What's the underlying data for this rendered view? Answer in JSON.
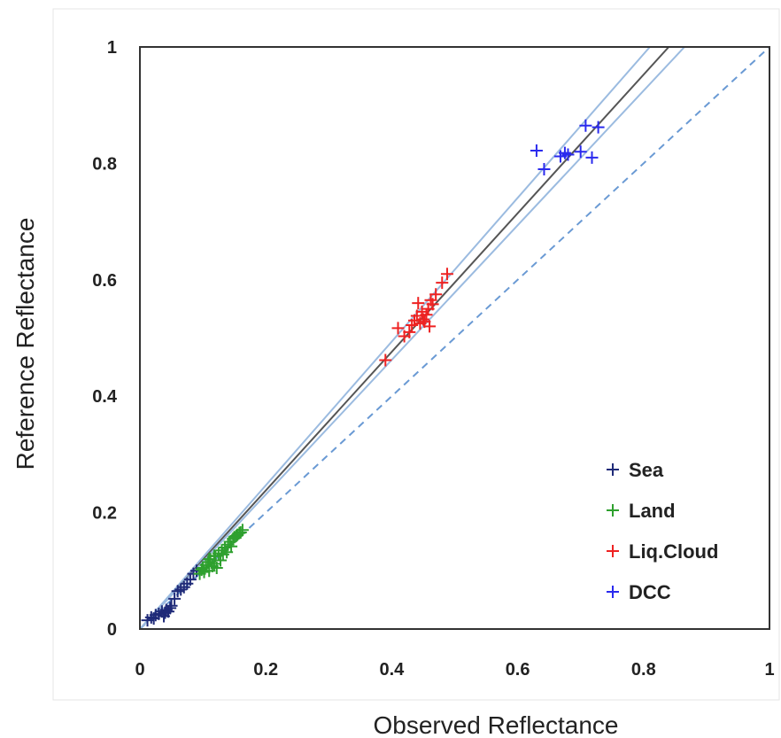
{
  "chart_data": {
    "type": "scatter",
    "title": "",
    "xlabel": "Observed Reflectance",
    "ylabel": "Reference Reflectance",
    "xlim": [
      0,
      1
    ],
    "ylim": [
      0,
      1
    ],
    "x_ticks": [
      "0",
      "0.2",
      "0.4",
      "0.6",
      "0.8",
      "1"
    ],
    "y_ticks": [
      "0",
      "0.2",
      "0.4",
      "0.6",
      "0.8",
      "1"
    ],
    "grid": false,
    "legend_position": "bottom-right",
    "series": [
      {
        "name": "Sea",
        "color": "#1f2a78",
        "marker": "plus",
        "points": [
          [
            0.012,
            0.015
          ],
          [
            0.018,
            0.02
          ],
          [
            0.022,
            0.018
          ],
          [
            0.025,
            0.024
          ],
          [
            0.03,
            0.026
          ],
          [
            0.035,
            0.03
          ],
          [
            0.038,
            0.022
          ],
          [
            0.04,
            0.028
          ],
          [
            0.042,
            0.033
          ],
          [
            0.045,
            0.03
          ],
          [
            0.048,
            0.036
          ],
          [
            0.05,
            0.04
          ],
          [
            0.055,
            0.052
          ],
          [
            0.06,
            0.065
          ],
          [
            0.065,
            0.068
          ],
          [
            0.07,
            0.072
          ],
          [
            0.075,
            0.078
          ],
          [
            0.08,
            0.085
          ],
          [
            0.085,
            0.095
          ],
          [
            0.09,
            0.1
          ]
        ]
      },
      {
        "name": "Land",
        "color": "#2ea02e",
        "marker": "plus",
        "points": [
          [
            0.095,
            0.095
          ],
          [
            0.098,
            0.102
          ],
          [
            0.1,
            0.105
          ],
          [
            0.102,
            0.098
          ],
          [
            0.105,
            0.11
          ],
          [
            0.108,
            0.115
          ],
          [
            0.11,
            0.1
          ],
          [
            0.112,
            0.12
          ],
          [
            0.115,
            0.108
          ],
          [
            0.118,
            0.112
          ],
          [
            0.12,
            0.125
          ],
          [
            0.122,
            0.105
          ],
          [
            0.125,
            0.13
          ],
          [
            0.128,
            0.118
          ],
          [
            0.13,
            0.135
          ],
          [
            0.132,
            0.128
          ],
          [
            0.135,
            0.14
          ],
          [
            0.138,
            0.132
          ],
          [
            0.14,
            0.145
          ],
          [
            0.143,
            0.15
          ],
          [
            0.145,
            0.142
          ],
          [
            0.148,
            0.155
          ],
          [
            0.15,
            0.158
          ],
          [
            0.153,
            0.16
          ],
          [
            0.155,
            0.162
          ],
          [
            0.158,
            0.165
          ],
          [
            0.16,
            0.166
          ],
          [
            0.163,
            0.17
          ],
          [
            0.11,
            0.12
          ],
          [
            0.118,
            0.126
          ]
        ]
      },
      {
        "name": "Liq.Cloud",
        "color": "#ee2222",
        "marker": "plus",
        "points": [
          [
            0.39,
            0.462
          ],
          [
            0.41,
            0.517
          ],
          [
            0.42,
            0.503
          ],
          [
            0.428,
            0.51
          ],
          [
            0.432,
            0.522
          ],
          [
            0.436,
            0.53
          ],
          [
            0.44,
            0.538
          ],
          [
            0.442,
            0.56
          ],
          [
            0.445,
            0.525
          ],
          [
            0.448,
            0.545
          ],
          [
            0.45,
            0.532
          ],
          [
            0.452,
            0.528
          ],
          [
            0.455,
            0.54
          ],
          [
            0.458,
            0.55
          ],
          [
            0.46,
            0.52
          ],
          [
            0.462,
            0.565
          ],
          [
            0.465,
            0.558
          ],
          [
            0.47,
            0.575
          ],
          [
            0.48,
            0.595
          ],
          [
            0.488,
            0.61
          ]
        ]
      },
      {
        "name": "DCC",
        "color": "#2a2aee",
        "marker": "plus",
        "points": [
          [
            0.63,
            0.822
          ],
          [
            0.642,
            0.79
          ],
          [
            0.668,
            0.812
          ],
          [
            0.675,
            0.818
          ],
          [
            0.68,
            0.815
          ],
          [
            0.7,
            0.82
          ],
          [
            0.708,
            0.865
          ],
          [
            0.718,
            0.81
          ],
          [
            0.728,
            0.862
          ]
        ]
      }
    ],
    "lines": [
      {
        "name": "one-to-one",
        "style": "dashed",
        "color": "#6a9ad4",
        "x": [
          0,
          1
        ],
        "y": [
          0,
          1
        ]
      },
      {
        "name": "regression",
        "style": "solid",
        "color": "#555555",
        "x": [
          0,
          0.84
        ],
        "y": [
          0,
          1
        ]
      },
      {
        "name": "upper-bound",
        "style": "solid",
        "color": "#9bbbe0",
        "x": [
          0,
          0.81
        ],
        "y": [
          0,
          1
        ]
      },
      {
        "name": "lower-bound",
        "style": "solid",
        "color": "#9bbbe0",
        "x": [
          0,
          0.865
        ],
        "y": [
          0,
          1
        ]
      }
    ]
  }
}
